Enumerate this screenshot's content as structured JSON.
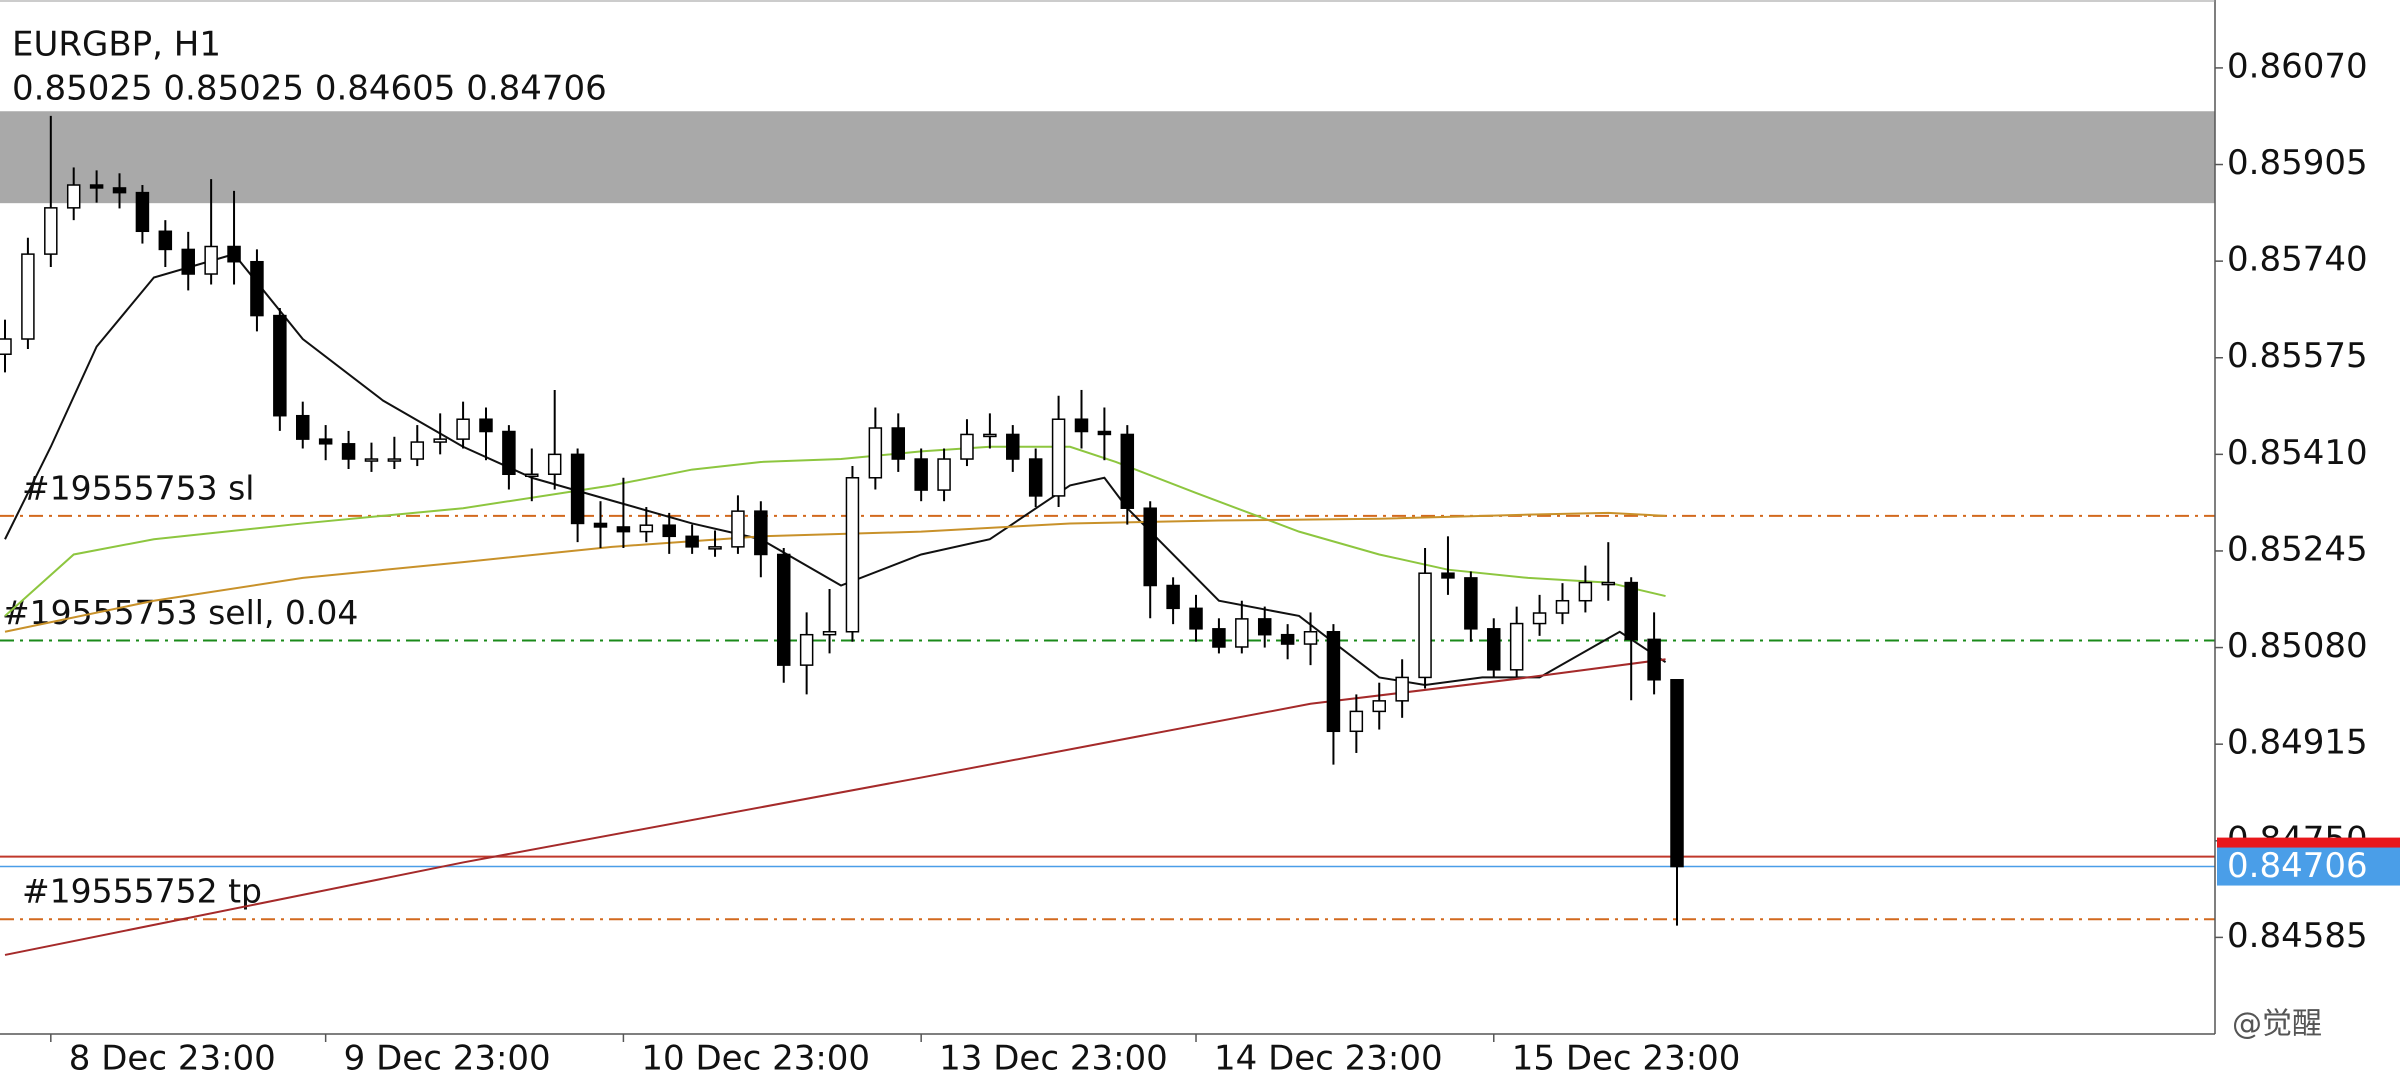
{
  "chart_data": {
    "type": "candlestick",
    "title": "EURGBP, H1",
    "subtitle": "0.85025 0.85025 0.84605 0.84706",
    "categories": [
      null,
      null,
      "8 Dec 23:00",
      null,
      null,
      null,
      null,
      null,
      null,
      null,
      null,
      null,
      null,
      null,
      "9 Dec 23:00",
      null,
      null,
      null,
      null,
      null,
      null,
      null,
      null,
      null,
      null,
      null,
      null,
      "10 Dec 23:00",
      null,
      null,
      null,
      null,
      null,
      null,
      null,
      null,
      null,
      null,
      null,
      null,
      "13 Dec 23:00",
      null,
      null,
      null,
      null,
      null,
      null,
      null,
      null,
      null,
      null,
      null,
      "14 Dec 23:00",
      null,
      null,
      null,
      null,
      null,
      null,
      null,
      null,
      null,
      null,
      null,
      null,
      "15 Dec 23:00",
      null,
      null,
      null,
      null,
      null,
      null,
      null,
      null
    ],
    "open": [
      0.85581,
      0.85607,
      0.85752,
      0.85831,
      0.8587,
      0.85865,
      0.85857,
      0.85791,
      0.8576,
      0.85718,
      0.85765,
      0.85739,
      0.85647,
      0.85476,
      0.85436,
      0.85428,
      0.85402,
      0.85402,
      0.85402,
      0.85431,
      0.85436,
      0.8547,
      0.85449,
      0.85376,
      0.85376,
      0.8541,
      0.85292,
      0.85286,
      0.85278,
      0.85289,
      0.8527,
      0.85252,
      0.85252,
      0.85313,
      0.85239,
      0.8505,
      0.85102,
      0.85107,
      0.8537,
      0.85455,
      0.85402,
      0.85349,
      0.85402,
      0.85444,
      0.85444,
      0.85402,
      0.85339,
      0.8547,
      0.85449,
      0.85444,
      0.85318,
      0.85186,
      0.85147,
      0.85112,
      0.85081,
      0.85129,
      0.85102,
      0.85086,
      0.85107,
      0.84937,
      0.84971,
      0.84989,
      0.85029,
      0.85207,
      0.85199,
      0.85112,
      0.85042,
      0.85121,
      0.85139,
      0.8516,
      0.85191,
      0.85191,
      0.85094,
      0.85025
    ],
    "high": [
      0.8564,
      0.8578,
      0.85988,
      0.859,
      0.85895,
      0.8589,
      0.8587,
      0.8581,
      0.8579,
      0.8588,
      0.8586,
      0.8576,
      0.8566,
      0.855,
      0.8546,
      0.8545,
      0.8543,
      0.8544,
      0.8546,
      0.8548,
      0.855,
      0.8549,
      0.8546,
      0.8542,
      0.8552,
      0.8542,
      0.8533,
      0.8537,
      0.8532,
      0.8531,
      0.8529,
      0.8528,
      0.8534,
      0.8533,
      0.8525,
      0.8514,
      0.8518,
      0.8539,
      0.8549,
      0.8548,
      0.8542,
      0.8542,
      0.8547,
      0.8548,
      0.8546,
      0.8542,
      0.8551,
      0.8552,
      0.8549,
      0.8546,
      0.8533,
      0.852,
      0.8517,
      0.8513,
      0.8516,
      0.8515,
      0.8512,
      0.8514,
      0.8512,
      0.85,
      0.8502,
      0.8506,
      0.8525,
      0.8527,
      0.8521,
      0.8513,
      0.8515,
      0.8517,
      0.8519,
      0.8522,
      0.8526,
      0.852,
      0.8514,
      0.85025
    ],
    "low": [
      0.8555,
      0.8559,
      0.8573,
      0.8581,
      0.8584,
      0.8583,
      0.8577,
      0.8573,
      0.8569,
      0.857,
      0.857,
      0.8562,
      0.8545,
      0.8542,
      0.854,
      0.85385,
      0.8538,
      0.85385,
      0.8539,
      0.8541,
      0.8542,
      0.854,
      0.8535,
      0.8533,
      0.8535,
      0.8526,
      0.8525,
      0.8525,
      0.8526,
      0.8524,
      0.8524,
      0.85235,
      0.8524,
      0.852,
      0.8502,
      0.85,
      0.8507,
      0.8509,
      0.8535,
      0.8538,
      0.8533,
      0.8533,
      0.8539,
      0.8542,
      0.8538,
      0.8532,
      0.8532,
      0.8542,
      0.854,
      0.8529,
      0.8513,
      0.8512,
      0.8509,
      0.8507,
      0.8507,
      0.8508,
      0.8506,
      0.8505,
      0.8488,
      0.849,
      0.8494,
      0.8496,
      0.8501,
      0.8517,
      0.8509,
      0.8503,
      0.8503,
      0.851,
      0.8512,
      0.8514,
      0.8516,
      0.8499,
      0.85,
      0.84605
    ],
    "close": [
      0.85607,
      0.85752,
      0.85831,
      0.8587,
      0.85865,
      0.85857,
      0.85791,
      0.8576,
      0.85718,
      0.85765,
      0.85739,
      0.85647,
      0.85476,
      0.85436,
      0.85428,
      0.85402,
      0.85402,
      0.85402,
      0.85431,
      0.85436,
      0.8547,
      0.85449,
      0.85376,
      0.85376,
      0.8541,
      0.85292,
      0.85286,
      0.85278,
      0.85289,
      0.8527,
      0.85252,
      0.85252,
      0.85313,
      0.85239,
      0.8505,
      0.85102,
      0.85107,
      0.8537,
      0.85455,
      0.85402,
      0.85349,
      0.85402,
      0.85444,
      0.85444,
      0.85402,
      0.85339,
      0.8547,
      0.85449,
      0.85444,
      0.85318,
      0.85186,
      0.85147,
      0.85112,
      0.85081,
      0.85129,
      0.85102,
      0.85086,
      0.85107,
      0.84937,
      0.84971,
      0.84989,
      0.85029,
      0.85207,
      0.85199,
      0.85112,
      0.85042,
      0.85121,
      0.85139,
      0.8516,
      0.85191,
      0.85191,
      0.85094,
      0.85025,
      0.84706
    ],
    "bull_color": "#ffffff",
    "bear_color": "#000000",
    "moving_averages": [
      {
        "color": "#111111",
        "x": [
          0,
          2,
          4,
          6.5,
          10,
          13,
          16.5,
          20,
          23,
          26.5,
          30,
          33,
          36.5,
          40,
          43,
          46.5,
          48,
          49,
          53,
          56.5,
          60,
          62,
          64.5,
          67,
          70.5,
          72.5
        ],
        "values": [
          0.85265,
          0.85423,
          0.85594,
          0.85712,
          0.85752,
          0.85607,
          0.85502,
          0.85423,
          0.8537,
          0.85331,
          0.85292,
          0.85265,
          0.85186,
          0.85239,
          0.85265,
          0.85357,
          0.8537,
          0.85318,
          0.8516,
          0.85134,
          0.85029,
          0.85016,
          0.85029,
          0.85029,
          0.85107,
          0.85055
        ]
      },
      {
        "color": "#8dc63f",
        "x": [
          0,
          3,
          6.5,
          13,
          20,
          26.5,
          30,
          33,
          36.5,
          40,
          43,
          46.5,
          48.5,
          52,
          56.5,
          60,
          63,
          66.5,
          70,
          72.5
        ],
        "values": [
          0.85134,
          0.85239,
          0.85265,
          0.85292,
          0.85318,
          0.85357,
          0.85384,
          0.85397,
          0.85402,
          0.85415,
          0.85423,
          0.85423,
          0.85397,
          0.85344,
          0.85278,
          0.85239,
          0.85213,
          0.85199,
          0.85191,
          0.85168
        ]
      },
      {
        "color": "#c8912a",
        "x": [
          0,
          6.5,
          13,
          20,
          26.5,
          33,
          40,
          46.5,
          53,
          60,
          66.5,
          70,
          72.5
        ],
        "values": [
          0.85107,
          0.8516,
          0.85199,
          0.85226,
          0.85252,
          0.8527,
          0.85278,
          0.85292,
          0.85297,
          0.853,
          0.85307,
          0.8531,
          0.85305
        ]
      },
      {
        "color": "#a52a2a",
        "x": [
          0,
          20,
          40,
          57,
          66.5,
          72.5
        ],
        "values": [
          0.84555,
          0.84713,
          0.84858,
          0.84984,
          0.85029,
          0.8506
        ]
      }
    ],
    "zone": {
      "from": 0.85839,
      "to": 0.85996,
      "color": "#a9a9a9"
    },
    "levels": [
      {
        "label": "#19555753 sl",
        "value": 0.85305,
        "color": "#d2691e",
        "style": "dashdot"
      },
      {
        "label": "#19555753 sell, 0.04",
        "value": 0.85092,
        "color": "#1a8a1a",
        "style": "dashdot"
      },
      {
        "label": "#19555752 tp",
        "value": 0.84616,
        "color": "#d2691e",
        "style": "dashdot"
      },
      {
        "value": 0.84723,
        "color": "#c0392b",
        "style": "solid"
      }
    ],
    "ask": {
      "value": 0.84723,
      "color": "#e8171b"
    },
    "bid": {
      "value": 0.84706,
      "color": "#4a9ee8"
    },
    "ylim": [
      0.8442,
      0.86186
    ],
    "yticks": [
      {
        "value": 0.8607,
        "label": "0.86070"
      },
      {
        "value": 0.85905,
        "label": "0.85905"
      },
      {
        "value": 0.8574,
        "label": "0.85740"
      },
      {
        "value": 0.85575,
        "label": "0.85575"
      },
      {
        "value": 0.8541,
        "label": "0.85410"
      },
      {
        "value": 0.85245,
        "label": "0.85245"
      },
      {
        "value": 0.8508,
        "label": "0.85080"
      },
      {
        "value": 0.84915,
        "label": "0.84915"
      },
      {
        "value": 0.8475,
        "label": "0.84750"
      },
      {
        "value": 0.84585,
        "label": "0.84585"
      }
    ],
    "watermark": "@觉醒"
  }
}
